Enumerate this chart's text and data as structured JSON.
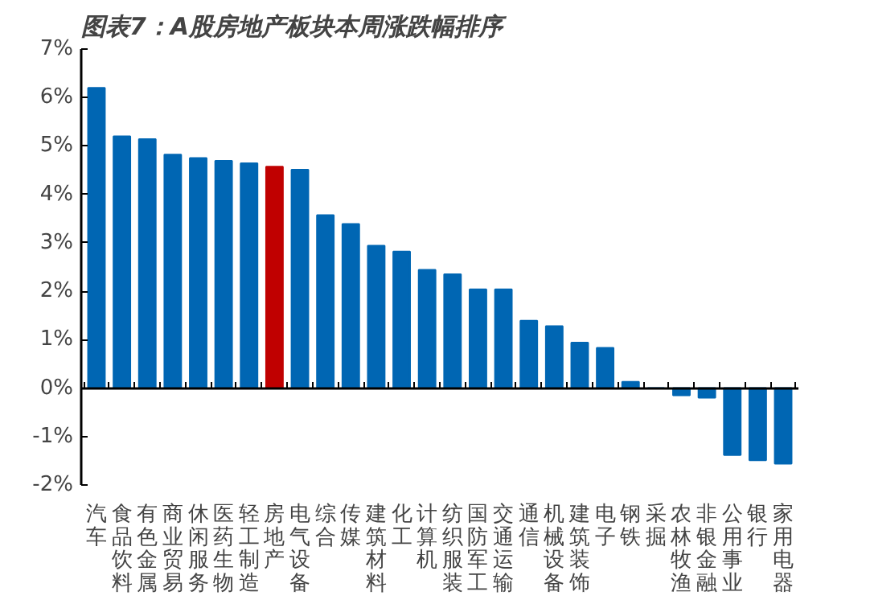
{
  "chart_data": {
    "type": "bar",
    "title": "图表7：A股房地产板块本周涨跌幅排序",
    "categories": [
      "汽车",
      "食品饮料",
      "有色金属",
      "商业贸易",
      "休闲服务",
      "医药生物",
      "轻工制造",
      "房地产",
      "电气设备",
      "综合",
      "传媒",
      "建筑材料",
      "化工",
      "计算机",
      "纺织服装",
      "国防军工",
      "交通运输",
      "通信",
      "机械设备",
      "建筑装饰",
      "电子",
      "钢铁",
      "采掘",
      "农林牧渔",
      "非银金融",
      "公用事业",
      "银行",
      "家用电器"
    ],
    "values": [
      6.2,
      5.2,
      5.14,
      4.82,
      4.75,
      4.69,
      4.64,
      4.57,
      4.51,
      3.57,
      3.39,
      2.94,
      2.82,
      2.44,
      2.35,
      2.04,
      2.04,
      1.39,
      1.28,
      0.94,
      0.83,
      0.13,
      0,
      -0.15,
      -0.2,
      -1.38,
      -1.49,
      -1.56
    ],
    "colors": [
      "#0066b3",
      "#0066b3",
      "#0066b3",
      "#0066b3",
      "#0066b3",
      "#0066b3",
      "#0066b3",
      "#c00000",
      "#0066b3",
      "#0066b3",
      "#0066b3",
      "#0066b3",
      "#0066b3",
      "#0066b3",
      "#0066b3",
      "#0066b3",
      "#0066b3",
      "#0066b3",
      "#0066b3",
      "#0066b3",
      "#0066b3",
      "#0066b3",
      "#0066b3",
      "#0066b3",
      "#0066b3",
      "#0066b3",
      "#0066b3",
      "#0066b3"
    ],
    "ylim": [
      -2,
      7
    ],
    "yticks": [
      {
        "value": -2,
        "label": "-2%"
      },
      {
        "value": -1,
        "label": "-1%"
      },
      {
        "value": 0,
        "label": "0%"
      },
      {
        "value": 1,
        "label": "1%"
      },
      {
        "value": 2,
        "label": "2%"
      },
      {
        "value": 3,
        "label": "3%"
      },
      {
        "value": 4,
        "label": "4%"
      },
      {
        "value": 5,
        "label": "5%"
      },
      {
        "value": 6,
        "label": "6%"
      },
      {
        "value": 7,
        "label": "7%"
      }
    ]
  }
}
